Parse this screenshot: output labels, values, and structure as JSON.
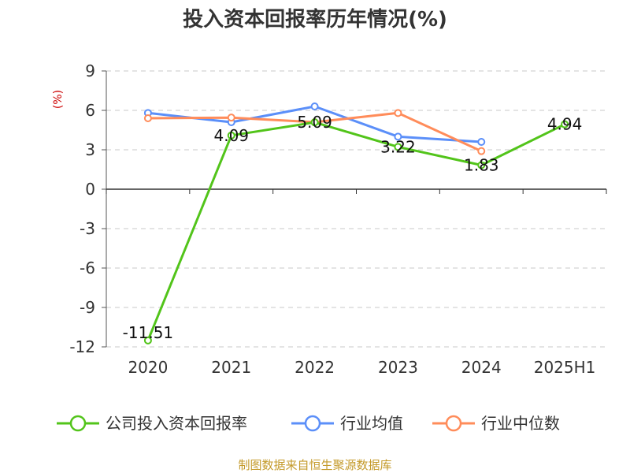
{
  "chart_data": {
    "type": "line",
    "title": "投入资本回报率历年情况(%)",
    "ylabel": "(%)",
    "xlabel": "",
    "ylim": [
      -12,
      9
    ],
    "yticks": [
      9,
      6,
      3,
      0,
      -3,
      -6,
      -9,
      -12
    ],
    "categories": [
      "2020",
      "2021",
      "2022",
      "2023",
      "2024",
      "2025H1"
    ],
    "grid": true,
    "legend_position": "bottom",
    "series": [
      {
        "name": "公司投入资本回报率",
        "color": "#52c41a",
        "values": [
          -11.51,
          4.09,
          5.09,
          3.22,
          1.83,
          4.94
        ],
        "show_labels": true
      },
      {
        "name": "行业均值",
        "color": "#5b8ff9",
        "values": [
          5.8,
          5.1,
          6.3,
          4.0,
          3.6,
          null
        ],
        "show_labels": false
      },
      {
        "name": "行业中位数",
        "color": "#ff8c5a",
        "values": [
          5.4,
          5.45,
          5.1,
          5.8,
          2.9,
          null
        ],
        "show_labels": false
      }
    ],
    "data_labels": [
      "-11.51",
      "4.09",
      "5.09",
      "3.22",
      "1.83",
      "4.94"
    ]
  },
  "footer": "制图数据来自恒生聚源数据库"
}
